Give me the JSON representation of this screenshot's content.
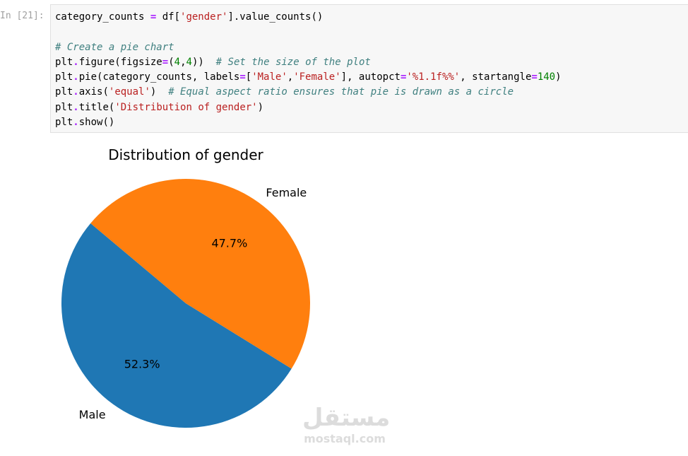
{
  "cell": {
    "prompt": "In [21]:",
    "code_lines": [
      [
        {
          "t": "var",
          "v": "category_counts "
        },
        {
          "t": "op",
          "v": "="
        },
        {
          "t": "var",
          "v": " df["
        },
        {
          "t": "str",
          "v": "'gender'"
        },
        {
          "t": "var",
          "v": "].value_counts()"
        }
      ],
      [],
      [
        {
          "t": "com",
          "v": "# Create a pie chart"
        }
      ],
      [
        {
          "t": "var",
          "v": "plt"
        },
        {
          "t": "op",
          "v": "."
        },
        {
          "t": "var",
          "v": "figure(figsize"
        },
        {
          "t": "op",
          "v": "="
        },
        {
          "t": "var",
          "v": "("
        },
        {
          "t": "num",
          "v": "4"
        },
        {
          "t": "var",
          "v": ","
        },
        {
          "t": "num",
          "v": "4"
        },
        {
          "t": "var",
          "v": "))  "
        },
        {
          "t": "com",
          "v": "# Set the size of the plot"
        }
      ],
      [
        {
          "t": "var",
          "v": "plt"
        },
        {
          "t": "op",
          "v": "."
        },
        {
          "t": "var",
          "v": "pie(category_counts, labels"
        },
        {
          "t": "op",
          "v": "="
        },
        {
          "t": "var",
          "v": "["
        },
        {
          "t": "str",
          "v": "'Male'"
        },
        {
          "t": "var",
          "v": ","
        },
        {
          "t": "str",
          "v": "'Female'"
        },
        {
          "t": "var",
          "v": "], autopct"
        },
        {
          "t": "op",
          "v": "="
        },
        {
          "t": "str",
          "v": "'%1.1f%%'"
        },
        {
          "t": "var",
          "v": ", startangle"
        },
        {
          "t": "op",
          "v": "="
        },
        {
          "t": "num",
          "v": "140"
        },
        {
          "t": "var",
          "v": ")"
        }
      ],
      [
        {
          "t": "var",
          "v": "plt"
        },
        {
          "t": "op",
          "v": "."
        },
        {
          "t": "var",
          "v": "axis("
        },
        {
          "t": "str",
          "v": "'equal'"
        },
        {
          "t": "var",
          "v": ")  "
        },
        {
          "t": "com",
          "v": "# Equal aspect ratio ensures that pie is drawn as a circle"
        }
      ],
      [
        {
          "t": "var",
          "v": "plt"
        },
        {
          "t": "op",
          "v": "."
        },
        {
          "t": "var",
          "v": "title("
        },
        {
          "t": "str",
          "v": "'Distribution of gender'"
        },
        {
          "t": "var",
          "v": ")"
        }
      ],
      [
        {
          "t": "var",
          "v": "plt"
        },
        {
          "t": "op",
          "v": "."
        },
        {
          "t": "var",
          "v": "show()"
        }
      ]
    ]
  },
  "chart_data": {
    "type": "pie",
    "title": "Distribution of gender",
    "labels": [
      "Male",
      "Female"
    ],
    "values": [
      52.3,
      47.7
    ],
    "autopct_labels": [
      "52.3%",
      "47.7%"
    ],
    "colors": [
      "#1f77b4",
      "#ff7f0e"
    ],
    "start_angle_deg": 140
  },
  "watermark": {
    "logo_text": "مستقل",
    "site": "mostaql.com"
  }
}
